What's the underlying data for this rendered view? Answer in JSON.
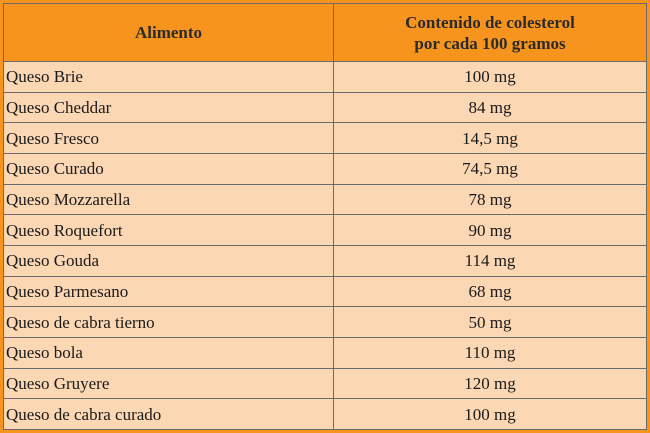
{
  "table": {
    "headers": {
      "food": "Alimento",
      "value_line1": "Contenido de colesterol",
      "value_line2": "por cada 100 gramos"
    },
    "rows": [
      {
        "food": "Queso Brie",
        "value": "100 mg"
      },
      {
        "food": "Queso Cheddar",
        "value": "84 mg"
      },
      {
        "food": "Queso Fresco",
        "value": "14,5 mg"
      },
      {
        "food": "Queso Curado",
        "value": "74,5 mg"
      },
      {
        "food": "Queso Mozzarella",
        "value": "78 mg"
      },
      {
        "food": "Queso Roquefort",
        "value": "90 mg"
      },
      {
        "food": "Queso Gouda",
        "value": "114 mg"
      },
      {
        "food": "Queso Parmesano",
        "value": "68 mg"
      },
      {
        "food": "Queso de cabra tierno",
        "value": "50 mg"
      },
      {
        "food": "Queso bola",
        "value": "110 mg"
      },
      {
        "food": "Queso Gruyere",
        "value": "120 mg"
      },
      {
        "food": "Queso de cabra curado",
        "value": "100 mg"
      }
    ]
  },
  "colors": {
    "header_bg": "#f7941e",
    "row_bg": "#fcd7b4",
    "border": "#6b6b6b"
  }
}
